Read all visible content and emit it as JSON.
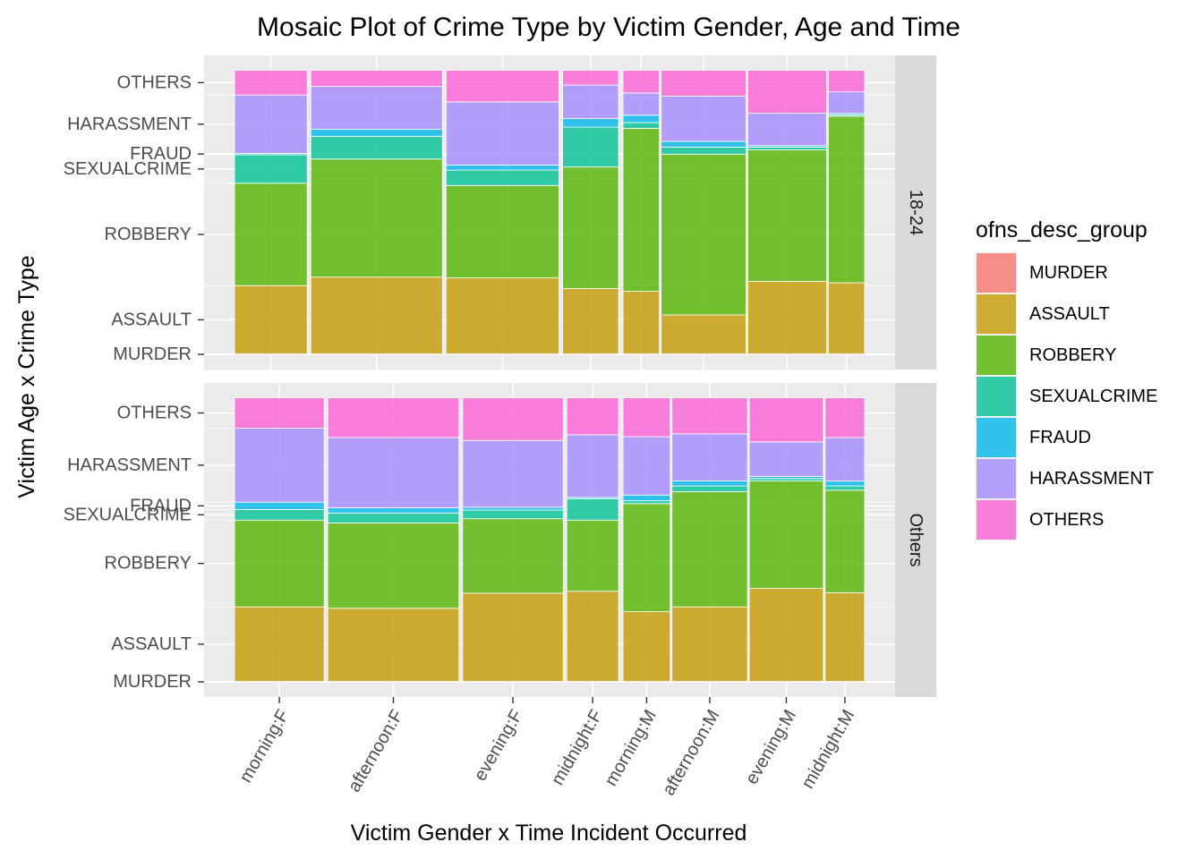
{
  "chart_data": {
    "type": "mosaic",
    "title": "Mosaic Plot of Crime Type by Victim Gender, Age and Time",
    "xlabel": "Victim Gender x Time Incident Occurred",
    "ylabel": "Victim Age x Crime Type",
    "legend": {
      "title": "ofns_desc_group",
      "placement": "right",
      "entries": [
        {
          "label": "MURDER",
          "color": "#F8766D"
        },
        {
          "label": "ASSAULT",
          "color": "#C49A00"
        },
        {
          "label": "ROBBERY",
          "color": "#53B400"
        },
        {
          "label": "SEXUALCRIME",
          "color": "#00C094"
        },
        {
          "label": "FRAUD",
          "color": "#00B6EB"
        },
        {
          "label": "HARASSMENT",
          "color": "#A58AFF"
        },
        {
          "label": "OTHERS",
          "color": "#FB61D7"
        }
      ]
    },
    "crime_types": [
      "MURDER",
      "ASSAULT",
      "ROBBERY",
      "SEXUALCRIME",
      "FRAUD",
      "HARASSMENT",
      "OTHERS"
    ],
    "x_tick_labels": [
      "morning:F",
      "afternoon:F",
      "evening:F",
      "midnight:F",
      "morning:M",
      "afternoon:M",
      "evening:M",
      "midnight:M"
    ],
    "gender_split": 0.613,
    "grid": true,
    "facets": [
      {
        "label": "18-24",
        "y_tick_labels": [
          "MURDER",
          "ASSAULT",
          "ROBBERY",
          "SEXUALCRIME",
          "FRAUD",
          "HARASSMENT",
          "OTHERS"
        ],
        "columns": [
          {
            "group": "morning:F",
            "width": 0.117,
            "shares": [
              0.003,
              0.24,
              0.36,
              0.1,
              0.005,
              0.205,
              0.087
            ]
          },
          {
            "group": "afternoon:F",
            "width": 0.212,
            "shares": [
              0.003,
              0.27,
              0.415,
              0.08,
              0.025,
              0.15,
              0.057
            ]
          },
          {
            "group": "evening:F",
            "width": 0.182,
            "shares": [
              0.003,
              0.267,
              0.325,
              0.054,
              0.018,
              0.222,
              0.111
            ]
          },
          {
            "group": "midnight:F",
            "width": 0.09,
            "shares": [
              0.003,
              0.23,
              0.427,
              0.14,
              0.03,
              0.118,
              0.052
            ]
          },
          {
            "group": "morning:M",
            "width": 0.06,
            "shares": [
              0.003,
              0.22,
              0.573,
              0.02,
              0.026,
              0.078,
              0.08
            ]
          },
          {
            "group": "afternoon:M",
            "width": 0.14,
            "shares": [
              0.003,
              0.137,
              0.565,
              0.025,
              0.02,
              0.159,
              0.091
            ]
          },
          {
            "group": "evening:M",
            "width": 0.13,
            "shares": [
              0.003,
              0.255,
              0.462,
              0.01,
              0.005,
              0.114,
              0.151
            ]
          },
          {
            "group": "midnight:M",
            "width": 0.06,
            "shares": [
              0.003,
              0.25,
              0.585,
              0.005,
              0.005,
              0.076,
              0.076
            ]
          }
        ]
      },
      {
        "label": "Others",
        "y_tick_labels": [
          "MURDER",
          "ASSAULT",
          "ROBBERY",
          "SEXUALCRIME",
          "FRAUD",
          "HARASSMENT",
          "OTHERS"
        ],
        "columns": [
          {
            "group": "morning:F",
            "width": 0.123,
            "shares": [
              0.003,
              0.262,
              0.305,
              0.037,
              0.026,
              0.26,
              0.107
            ]
          },
          {
            "group": "afternoon:F",
            "width": 0.18,
            "shares": [
              0.003,
              0.257,
              0.3,
              0.035,
              0.018,
              0.247,
              0.14
            ]
          },
          {
            "group": "evening:F",
            "width": 0.138,
            "shares": [
              0.003,
              0.31,
              0.262,
              0.03,
              0.01,
              0.235,
              0.15
            ]
          },
          {
            "group": "midnight:F",
            "width": 0.071,
            "shares": [
              0.003,
              0.317,
              0.25,
              0.075,
              0.005,
              0.22,
              0.13
            ]
          },
          {
            "group": "morning:M",
            "width": 0.093,
            "shares": [
              0.003,
              0.245,
              0.38,
              0.01,
              0.02,
              0.205,
              0.137
            ]
          },
          {
            "group": "afternoon:M",
            "width": 0.149,
            "shares": [
              0.003,
              0.262,
              0.405,
              0.02,
              0.018,
              0.165,
              0.127
            ]
          },
          {
            "group": "evening:M",
            "width": 0.146,
            "shares": [
              0.003,
              0.327,
              0.378,
              0.008,
              0.007,
              0.122,
              0.155
            ]
          },
          {
            "group": "midnight:M",
            "width": 0.078,
            "shares": [
              0.003,
              0.312,
              0.36,
              0.015,
              0.017,
              0.153,
              0.14
            ]
          }
        ]
      }
    ]
  }
}
